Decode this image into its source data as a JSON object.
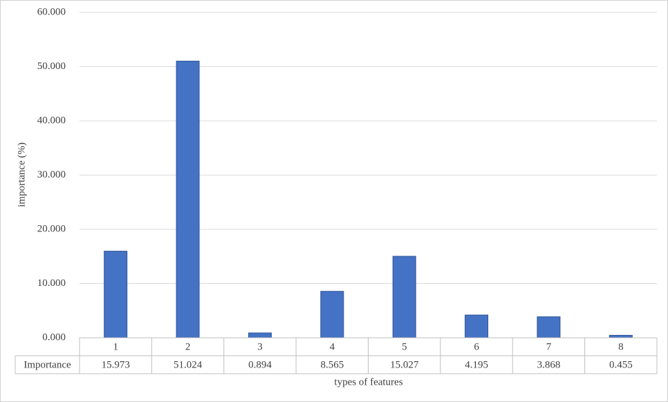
{
  "chart_data": {
    "type": "bar",
    "y_label": "importance (%)",
    "x_label": "types of features",
    "categories": [
      "1",
      "2",
      "3",
      "4",
      "5",
      "6",
      "7",
      "8"
    ],
    "series": [
      {
        "name": "Importance",
        "color": "#4472c4",
        "values": [
          15.973,
          51.024,
          0.894,
          8.565,
          15.027,
          4.195,
          3.868,
          0.455
        ]
      }
    ],
    "ylim": [
      0,
      60
    ],
    "yticks": [
      {
        "value": 0,
        "label": "0.000"
      },
      {
        "value": 10,
        "label": "10.000"
      },
      {
        "value": 20,
        "label": "20.000"
      },
      {
        "value": 30,
        "label": "30.000"
      },
      {
        "value": 40,
        "label": "40.000"
      },
      {
        "value": 50,
        "label": "50.000"
      },
      {
        "value": 60,
        "label": "60.000"
      }
    ],
    "grid": true
  }
}
